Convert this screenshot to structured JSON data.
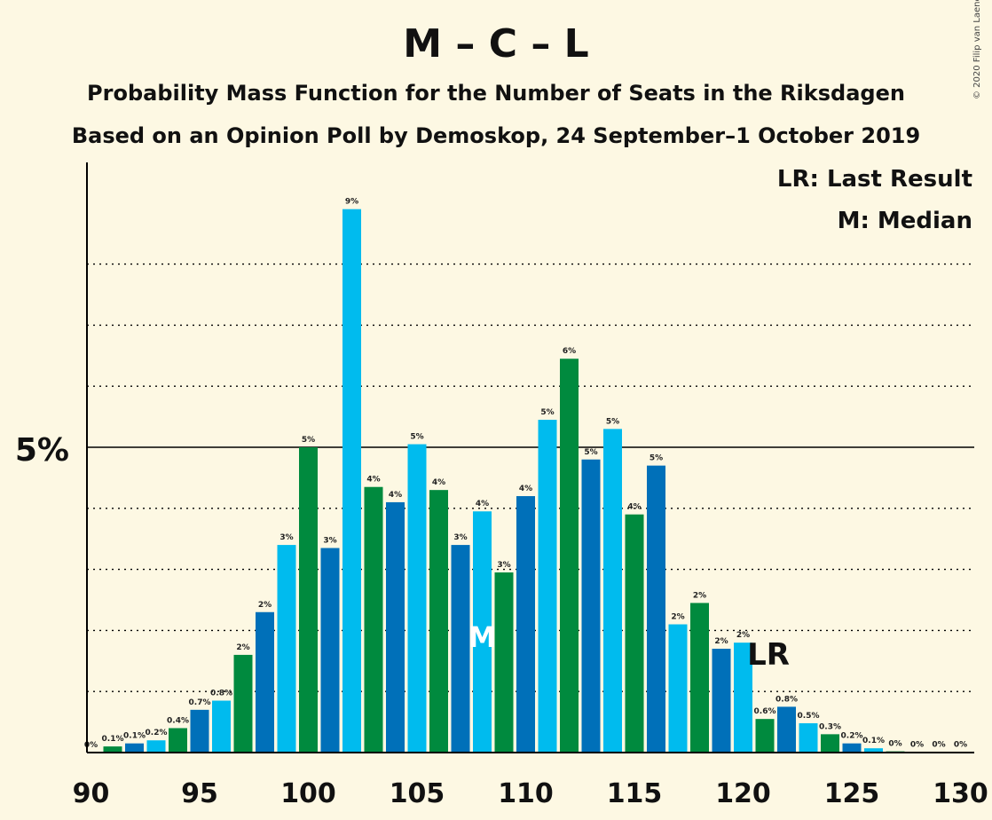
{
  "title": "M – C – L",
  "subtitle1": "Probability Mass Function for the Number of Seats in the Riksdagen",
  "subtitle2": "Based on an Opinion Poll by Demoskop, 24 September–1 October 2019",
  "copyright": "© 2020 Filip van Laenen",
  "legend": {
    "last_result": "LR: Last Result",
    "median": "M: Median"
  },
  "colors": {
    "background": "#fdf8e3",
    "blue_dark": "#0070b9",
    "blue_light": "#00bbee",
    "green": "#008a3e"
  },
  "chart_data": {
    "type": "bar",
    "x": [
      90,
      91,
      92,
      93,
      94,
      95,
      96,
      97,
      98,
      99,
      100,
      101,
      102,
      103,
      104,
      105,
      106,
      107,
      108,
      109,
      110,
      111,
      112,
      113,
      114,
      115,
      116,
      117,
      118,
      119,
      120,
      121,
      122,
      123,
      124,
      125,
      126,
      127,
      128,
      129,
      130
    ],
    "values": [
      0,
      0.1,
      0.15,
      0.2,
      0.4,
      0.7,
      0.85,
      1.6,
      2.3,
      3.4,
      5.0,
      3.35,
      8.9,
      4.35,
      4.1,
      5.05,
      4.3,
      3.4,
      3.95,
      2.95,
      4.2,
      5.45,
      6.45,
      4.8,
      5.3,
      3.9,
      4.7,
      2.1,
      2.45,
      1.7,
      1.8,
      0.55,
      0.75,
      0.48,
      0.3,
      0.15,
      0.07,
      0.02,
      0.01,
      0.005,
      0.004
    ],
    "data_labels": [
      "0%",
      "0.1%",
      "0.1%",
      "0.2%",
      "0.4%",
      "0.7%",
      "0.8%",
      "2%",
      "2%",
      "3%",
      "5%",
      "3%",
      "9%",
      "4%",
      "4%",
      "5%",
      "4%",
      "3%",
      "4%",
      "3%",
      "4%",
      "5%",
      "6%",
      "5%",
      "5%",
      "4%",
      "5%",
      "2%",
      "2%",
      "2%",
      "2%",
      "0.6%",
      "0.8%",
      "0.5%",
      "0.3%",
      "0.2%",
      "0.1%",
      "0%",
      "0%",
      "0%",
      "0%"
    ],
    "bar_colors": [
      "blue_light",
      "green",
      "blue_dark",
      "blue_light",
      "green",
      "blue_dark",
      "blue_light",
      "green",
      "blue_dark",
      "blue_light",
      "green",
      "blue_dark",
      "blue_light",
      "green",
      "blue_dark",
      "blue_light",
      "green",
      "blue_dark",
      "blue_light",
      "green",
      "blue_dark",
      "blue_light",
      "green",
      "blue_dark",
      "blue_light",
      "green",
      "blue_dark",
      "blue_light",
      "green",
      "blue_dark",
      "blue_light",
      "green",
      "blue_dark",
      "blue_light",
      "green",
      "blue_dark",
      "blue_light",
      "green",
      "blue_dark",
      "blue_light",
      "green"
    ],
    "x_ticks": [
      "90",
      "95",
      "100",
      "105",
      "110",
      "115",
      "120",
      "125",
      "130"
    ],
    "y_tick_label": "5%",
    "ylim": [
      0,
      9.7
    ],
    "gridlines": [
      1,
      2,
      3,
      4,
      5,
      6,
      7,
      8
    ],
    "major_gridline": 5,
    "median_seat": 108,
    "median_label": "M",
    "last_result_seat": 121,
    "last_result_label": "LR"
  }
}
